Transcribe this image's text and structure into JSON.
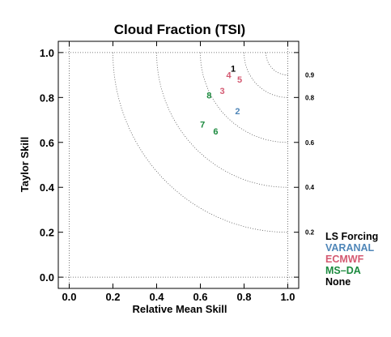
{
  "chart_data": {
    "type": "scatter",
    "title": "Cloud Fraction (TSI)",
    "xlabel": "Relative Mean Skill",
    "ylabel": "Taylor Skill",
    "xlim": [
      -0.05,
      1.05
    ],
    "ylim": [
      -0.05,
      1.05
    ],
    "x_ticks": [
      "0.0",
      "0.2",
      "0.4",
      "0.6",
      "0.8",
      "1.0"
    ],
    "y_ticks": [
      "0.0",
      "0.2",
      "0.4",
      "0.6",
      "0.8",
      "1.0"
    ],
    "grid": "dotted at 0 and 1",
    "contour_levels": [
      "0.2",
      "0.4",
      "0.6",
      "0.8",
      "0.9"
    ],
    "legend_placement": "bottom-right, outside plot",
    "legend_title": "LS Forcing",
    "series": [
      {
        "name": "VARANAL",
        "color": "#4f86b8",
        "points": [
          {
            "label": "2",
            "x": 0.77,
            "y": 0.74
          }
        ]
      },
      {
        "name": "ECMWF",
        "color": "#d45a72",
        "points": [
          {
            "label": "4",
            "x": 0.73,
            "y": 0.9
          },
          {
            "label": "5",
            "x": 0.78,
            "y": 0.88
          },
          {
            "label": "3",
            "x": 0.7,
            "y": 0.83
          }
        ]
      },
      {
        "name": "MS–DA",
        "color": "#1b8a3e",
        "points": [
          {
            "label": "8",
            "x": 0.64,
            "y": 0.81
          },
          {
            "label": "7",
            "x": 0.61,
            "y": 0.68
          },
          {
            "label": "6",
            "x": 0.67,
            "y": 0.65
          }
        ]
      },
      {
        "name": "None",
        "color": "#000000",
        "points": [
          {
            "label": "1",
            "x": 0.75,
            "y": 0.93
          }
        ]
      }
    ]
  }
}
